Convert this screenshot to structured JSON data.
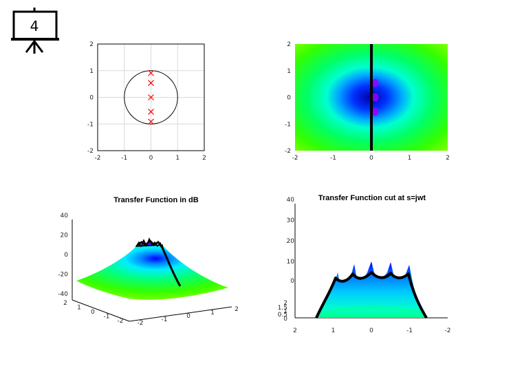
{
  "badge": {
    "label": "4",
    "icon": "presentation-board-icon"
  },
  "colors": {
    "axis": "#000000",
    "grid": "#d9d9d9",
    "pole": "#ff0000",
    "surface_low": "#33ff00",
    "surface_high": "#0000ff",
    "peak": "#9900ff",
    "cut": "#000000"
  },
  "chart_data": [
    {
      "type": "scatter",
      "title": "",
      "xlim": [
        -2,
        2
      ],
      "ylim": [
        -2,
        2
      ],
      "xticks": [
        "-2",
        "-1",
        "0",
        "1",
        "2"
      ],
      "yticks": [
        "-2",
        "-1",
        "0",
        "1",
        "2"
      ],
      "grid": true,
      "unit_circle": {
        "center": [
          0,
          0
        ],
        "radius": 1
      },
      "marker": "x",
      "series": [
        {
          "points": [
            [
              0,
              0.91
            ],
            [
              0,
              0.54
            ],
            [
              0,
              0
            ],
            [
              0,
              -0.54
            ],
            [
              0,
              -0.91
            ]
          ]
        }
      ]
    },
    {
      "type": "heatmap",
      "title": "",
      "xlim": [
        -2,
        2
      ],
      "ylim": [
        -2,
        2
      ],
      "xticks": [
        "-2",
        "-1",
        "0",
        "1",
        "2"
      ],
      "yticks": [
        "-2",
        "-1",
        "0",
        "1",
        "2"
      ],
      "colormap": "jet",
      "line": {
        "x": 0,
        "y_range": [
          -2,
          2
        ]
      },
      "peaks": [
        [
          0.1,
          0.54
        ],
        [
          0.1,
          0
        ],
        [
          0.1,
          -0.54
        ]
      ]
    },
    {
      "type": "area",
      "title": "Transfer Function in dB",
      "zlim": [
        -40,
        40
      ],
      "zticks": [
        "40",
        "20",
        "0",
        "-20",
        "-40"
      ],
      "xticks": [
        "-2",
        "-1",
        "0",
        "1",
        "2"
      ],
      "yticks": [
        "2",
        "1",
        "0",
        "-1",
        "-2"
      ],
      "view": "3d"
    },
    {
      "type": "area",
      "title": "Transfer Function cut at s=jwt",
      "zticks": [
        "40",
        "30",
        "20",
        "10",
        "0"
      ],
      "yticks": [
        "2",
        "1.5",
        "1",
        "0.5",
        "0"
      ],
      "xticks": [
        "2",
        "1",
        "0",
        "-1",
        "-2"
      ],
      "view": "3d"
    }
  ]
}
